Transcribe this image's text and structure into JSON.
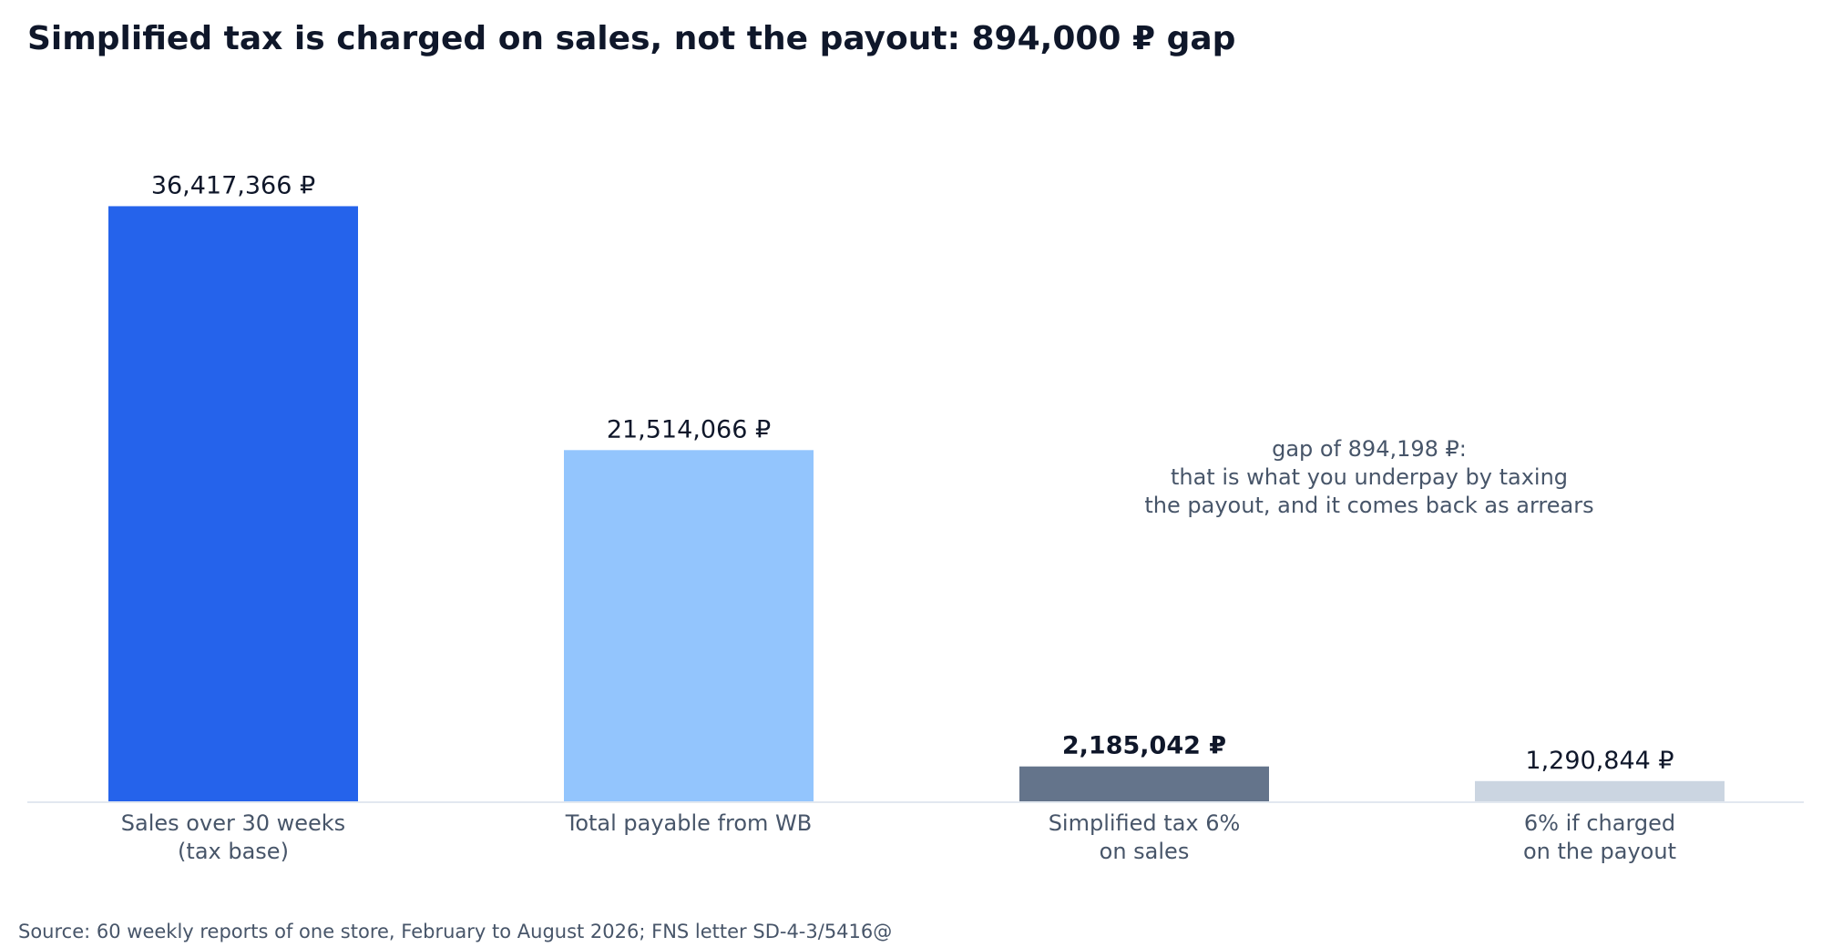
{
  "chart_data": {
    "type": "bar",
    "title": "Simplified tax is charged on sales, not the payout: 894,000 ₽ gap",
    "categories": [
      [
        "Sales over 30 weeks",
        "(tax base)"
      ],
      [
        "Total payable from WB"
      ],
      [
        "Simplified tax 6%",
        "on sales"
      ],
      [
        "6% if charged",
        "on the payout"
      ]
    ],
    "values": [
      36417366,
      21514066,
      2185042,
      1290844
    ],
    "value_labels": [
      "36,417,366 ₽",
      "21,514,066 ₽",
      "2,185,042 ₽",
      "1,290,844 ₽"
    ],
    "bold_label_index": 2,
    "colors": [
      "#2563eb",
      "#93c5fd",
      "#64748b",
      "#cbd5e1"
    ],
    "annotation": [
      "gap of 894,198 ₽:",
      "that is what you underpay by taxing",
      "the payout, and it comes back as arrears"
    ],
    "ylim": [
      0,
      38000000
    ],
    "xlabel": "",
    "ylabel": "",
    "grid": false,
    "legend": "none"
  },
  "source": "Source: 60 weekly reports of one store, February to August 2026; FNS letter SD-4-3/5416@"
}
